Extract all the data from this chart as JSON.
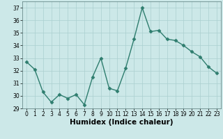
{
  "x": [
    0,
    1,
    2,
    3,
    4,
    5,
    6,
    7,
    8,
    9,
    10,
    11,
    12,
    13,
    14,
    15,
    16,
    17,
    18,
    19,
    20,
    21,
    22,
    23
  ],
  "y": [
    32.7,
    32.1,
    30.3,
    29.5,
    30.1,
    29.8,
    30.1,
    29.3,
    31.5,
    33.0,
    30.6,
    30.4,
    32.2,
    34.5,
    37.0,
    35.1,
    35.2,
    34.5,
    34.4,
    34.0,
    33.5,
    33.1,
    32.3,
    31.8
  ],
  "line_color": "#2e7d6e",
  "marker": "D",
  "marker_size": 2.5,
  "bg_color": "#cce8e8",
  "grid_color": "#aacfcf",
  "xlabel": "Humidex (Indice chaleur)",
  "xlim": [
    -0.5,
    23.5
  ],
  "ylim": [
    29,
    37.5
  ],
  "yticks": [
    29,
    30,
    31,
    32,
    33,
    34,
    35,
    36,
    37
  ],
  "xticks": [
    0,
    1,
    2,
    3,
    4,
    5,
    6,
    7,
    8,
    9,
    10,
    11,
    12,
    13,
    14,
    15,
    16,
    17,
    18,
    19,
    20,
    21,
    22,
    23
  ],
  "tick_fontsize": 5.5,
  "xlabel_fontsize": 7.5,
  "linewidth": 1.0
}
